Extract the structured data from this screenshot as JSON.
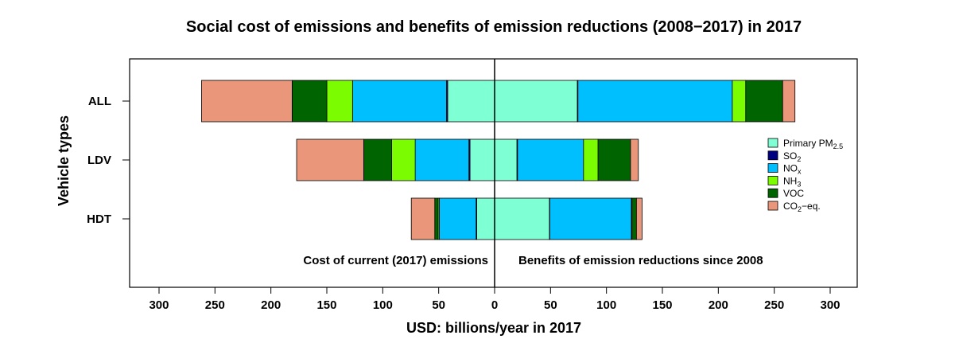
{
  "chart_data": {
    "type": "bar",
    "orientation": "horizontal-diverging",
    "title": "Social cost of emissions and benefits of emission reductions (2008−2017) in 2017",
    "xlabel": "USD: billions/year in 2017",
    "ylabel": "Vehicle types",
    "xlim": [
      -320,
      320
    ],
    "xticks": [
      -300,
      -250,
      -200,
      -150,
      -100,
      -50,
      0,
      50,
      100,
      150,
      200,
      250,
      300
    ],
    "xtick_labels": [
      "300",
      "250",
      "200",
      "150",
      "100",
      "50",
      "0",
      "50",
      "100",
      "150",
      "200",
      "250",
      "300"
    ],
    "categories": [
      "ALL",
      "LDV",
      "HDT"
    ],
    "annotations": {
      "left": "Cost of current (2017) emissions",
      "right": "Benefits of emission reductions since 2008"
    },
    "legend": {
      "placement": "right",
      "items": [
        {
          "key": "pm25",
          "base": "Primary PM",
          "sub": "2.5",
          "suffix": ""
        },
        {
          "key": "so2",
          "base": "SO",
          "sub": "2",
          "suffix": ""
        },
        {
          "key": "nox",
          "base": "NO",
          "sub": "x",
          "suffix": ""
        },
        {
          "key": "nh3",
          "base": "NH",
          "sub": "3",
          "suffix": ""
        },
        {
          "key": "voc",
          "base": "VOC",
          "sub": "",
          "suffix": ""
        },
        {
          "key": "co2",
          "base": "CO",
          "sub": "2",
          "suffix": "−eq."
        }
      ]
    },
    "colors": {
      "pm25": "#7fffd4",
      "so2": "#000080",
      "nox": "#00bfff",
      "nh3": "#7cfc00",
      "voc": "#006400",
      "co2": "#e9967a"
    },
    "series": [
      {
        "key": "pm25",
        "cost": [
          42,
          22,
          16
        ],
        "benefit": [
          74,
          20,
          49
        ]
      },
      {
        "key": "so2",
        "cost": [
          1,
          1,
          0.5
        ],
        "benefit": [
          0.5,
          0.5,
          0.3
        ]
      },
      {
        "key": "nox",
        "cost": [
          84,
          48,
          33
        ],
        "benefit": [
          138,
          59,
          73
        ]
      },
      {
        "key": "nh3",
        "cost": [
          23,
          21,
          1
        ],
        "benefit": [
          12,
          13,
          0.5
        ]
      },
      {
        "key": "voc",
        "cost": [
          31,
          25,
          3
        ],
        "benefit": [
          33,
          29,
          4
        ]
      },
      {
        "key": "co2",
        "cost": [
          81,
          60,
          21
        ],
        "benefit": [
          11,
          7,
          5
        ]
      }
    ]
  }
}
